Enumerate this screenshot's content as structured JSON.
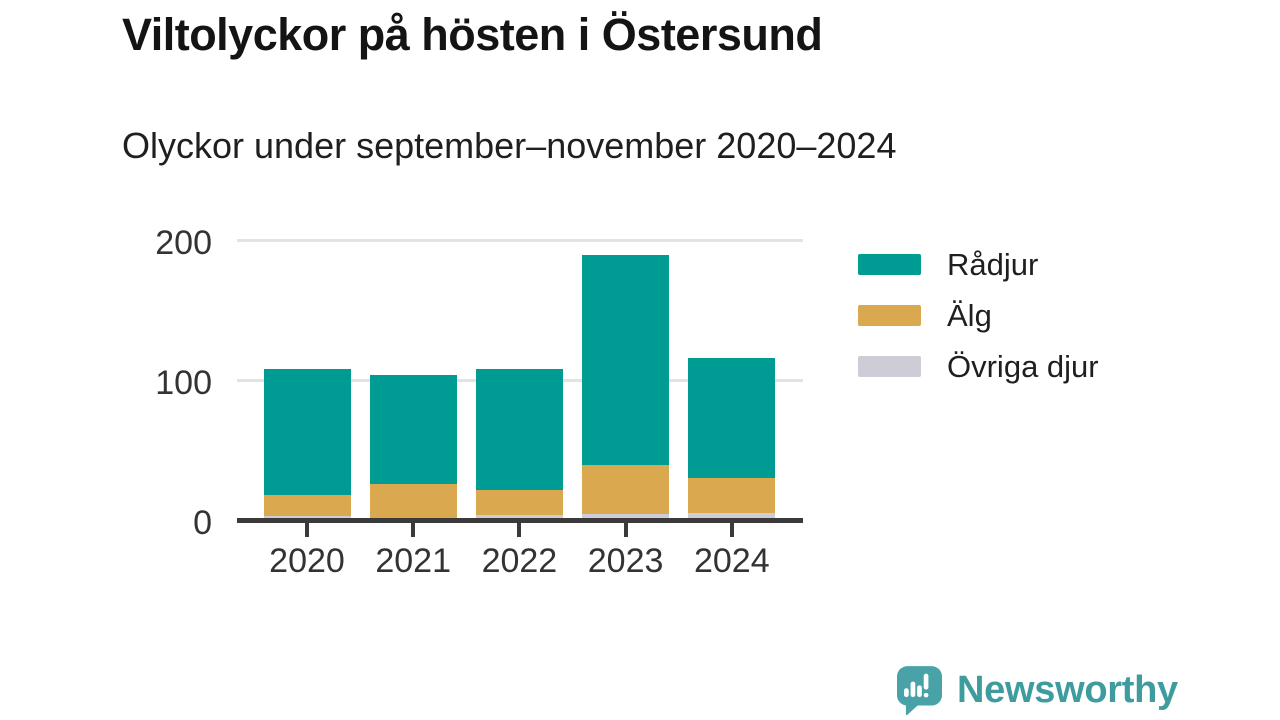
{
  "chart_data": {
    "type": "bar",
    "stacked": true,
    "title": "Viltolyckor på hösten i Östersund",
    "subtitle": "Olyckor under september–november 2020–2024",
    "categories": [
      "2020",
      "2021",
      "2022",
      "2023",
      "2024"
    ],
    "series": [
      {
        "name": "Rådjur",
        "color": "#009c94",
        "values": [
          90,
          78,
          86,
          150,
          86
        ]
      },
      {
        "name": "Älg",
        "color": "#d9a84f",
        "values": [
          15,
          25,
          18,
          35,
          25
        ]
      },
      {
        "name": "Övriga djur",
        "color": "#cecdd7",
        "values": [
          3,
          1,
          4,
          5,
          5
        ]
      }
    ],
    "stack_order_bottom_to_top": [
      "Övriga djur",
      "Älg",
      "Rådjur"
    ],
    "totals": [
      108,
      104,
      108,
      190,
      116
    ],
    "xlabel": "",
    "ylabel": "",
    "ylim": [
      0,
      200
    ],
    "yticks": [
      0,
      100,
      200
    ],
    "grid": "horizontal",
    "legend_position": "right"
  },
  "footer": {
    "brand": "Newsworthy",
    "brand_color": "#3f9c9e",
    "logo_icon": "newsworthy-speech-bubble-bar-chart-icon",
    "logo_color": "#48a2a7"
  },
  "style_colors": {
    "background": "#ffffff",
    "title_text": "#141414",
    "axis_text": "#333333",
    "axis_line": "#3a3a3a",
    "gridline": "#e3e3e3"
  }
}
